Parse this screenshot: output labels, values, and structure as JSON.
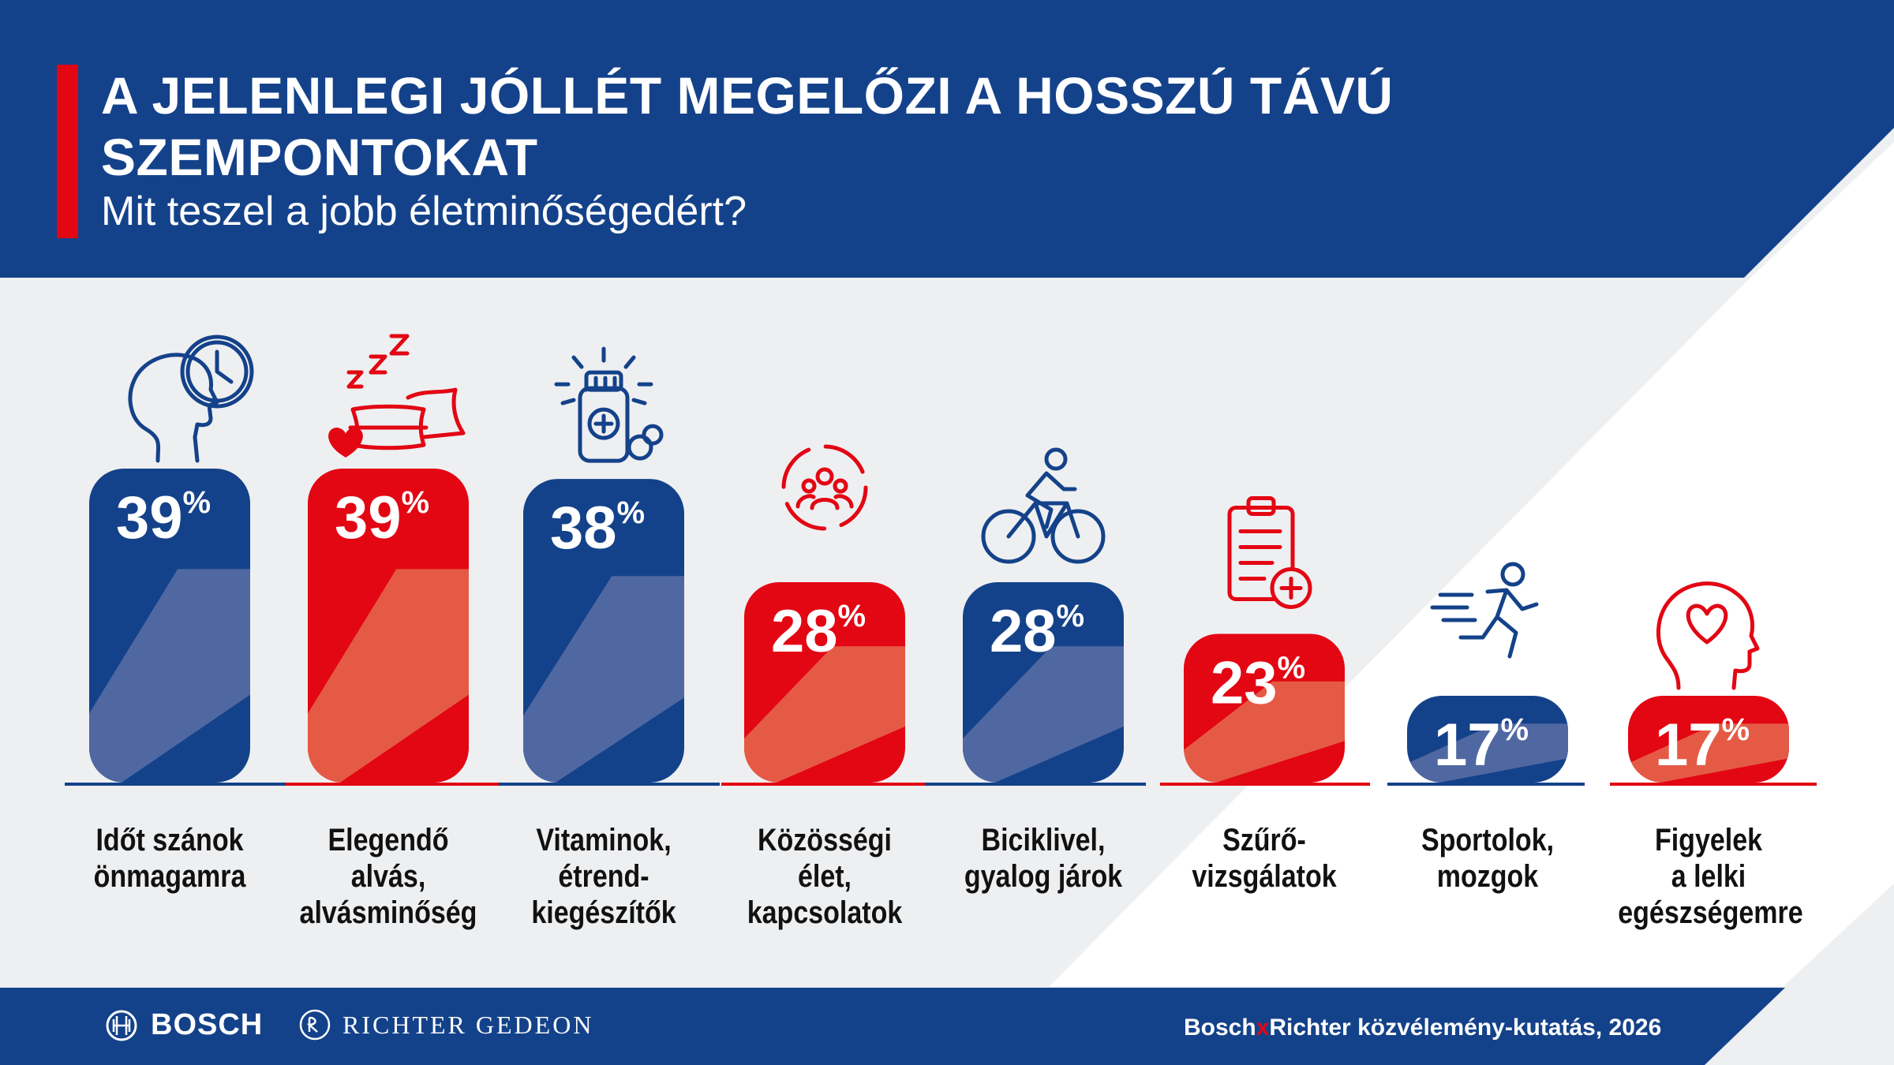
{
  "header": {
    "title": "A JELENLEGI JÓLLÉT MEGELŐZI A HOSSZÚ TÁVÚ SZEMPONTOKAT",
    "subtitle": "Mit teszel a jobb életminőségedért?"
  },
  "footer": {
    "brand1": "BOSCH",
    "brand2": "RICHTER GEDEON",
    "source_a": "Bosch",
    "source_x": "x",
    "source_b": "Richter közvélemény-kutatás, 2026"
  },
  "colors": {
    "blue": "#14428a",
    "red": "#e30613",
    "blue_light": "#5068a2",
    "red_light": "#e55a45",
    "background": "#eeeff1"
  },
  "chart_data": {
    "type": "bar",
    "unit": "%",
    "categories": [
      "Időt szánok önmagamra",
      "Elegendő alvás, alvásminőség",
      "Vitaminok, étrend-kiegészítők",
      "Közösségi élet, kapcsolatok",
      "Biciklivel, gyalog járok",
      "Szűrő-vizsgálatok",
      "Sportolok, mozgok",
      "Figyelek a lelki egészségemre"
    ],
    "labels": [
      "Időt szánok\nönmagamra",
      "Elegendő\nalvás,\nalvásminőség",
      "Vitaminok,\nétrend-\nkiegészítők",
      "Közösségi\nélet,\nkapcsolatok",
      "Biciklivel,\ngyalog járok",
      "Szűrő-\nvizsgálatok",
      "Sportolok,\nmozgok",
      "Figyelek\na lelki\negészségemre"
    ],
    "values": [
      39,
      39,
      38,
      28,
      28,
      23,
      17,
      17
    ],
    "colors": [
      "blue",
      "red",
      "blue",
      "red",
      "blue",
      "red",
      "blue",
      "red"
    ],
    "icons": [
      "head-clock-icon",
      "sleep-pillow-icon",
      "pill-bottle-icon",
      "community-icon",
      "bicycle-icon",
      "clipboard-medical-icon",
      "running-person-icon",
      "head-heart-icon"
    ]
  }
}
